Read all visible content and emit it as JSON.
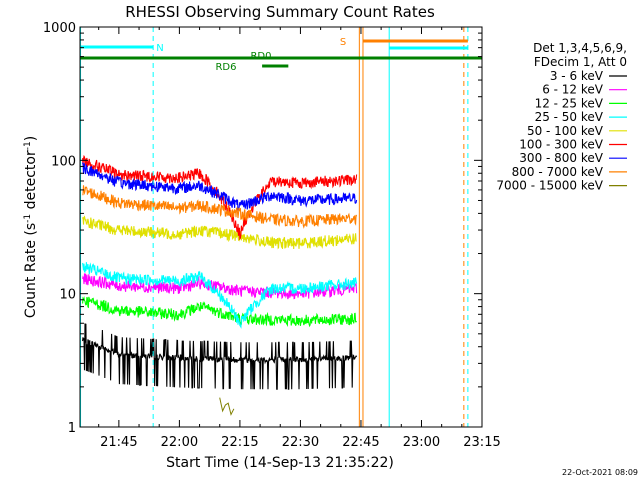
{
  "chart_data": {
    "type": "line",
    "title": "RHESSI Observing Summary Count Rates",
    "xlabel": "Start Time (14-Sep-13 21:35:22)",
    "ylabel_main": "Count Rate (s",
    "ylabel_sup1": "-1",
    "ylabel_mid": " detector",
    "ylabel_sup2": "-1",
    "ylabel_end": ")",
    "ylog": true,
    "ylim": [
      1,
      1000
    ],
    "xlim": [
      "21:35:22",
      "23:15:00"
    ],
    "x_ticks": [
      {
        "label": "21:45",
        "min": 45
      },
      {
        "label": "22:00",
        "min": 60
      },
      {
        "label": "22:15",
        "min": 75
      },
      {
        "label": "22:30",
        "min": 90
      },
      {
        "label": "22:45",
        "min": 105
      },
      {
        "label": "23:00",
        "min": 120
      },
      {
        "label": "23:15",
        "min": 135
      }
    ],
    "y_ticks": [
      {
        "label": "1",
        "value": 1
      },
      {
        "label": "10",
        "value": 10
      },
      {
        "label": "100",
        "value": 100
      },
      {
        "label": "1000",
        "value": 1000
      }
    ],
    "legend": {
      "header_line1": "Det 1,3,4,5,6,9,",
      "header_line2": "FDecim 1, Att 0",
      "placement": "right"
    },
    "series": [
      {
        "name": "3 - 6 keV",
        "color": "#000000",
        "values": [
          {
            "x": "21:36",
            "y": 4.5
          },
          {
            "x": "21:45",
            "y": 3.5
          },
          {
            "x": "22:00",
            "y": 3.3
          },
          {
            "x": "22:15",
            "y": 3.2
          },
          {
            "x": "22:30",
            "y": 3.2
          },
          {
            "x": "22:44",
            "y": 3.3
          }
        ]
      },
      {
        "name": "6 - 12 keV",
        "color": "#ff00ff",
        "values": [
          {
            "x": "21:36",
            "y": 13
          },
          {
            "x": "21:45",
            "y": 11.5
          },
          {
            "x": "22:00",
            "y": 11
          },
          {
            "x": "22:05",
            "y": 12
          },
          {
            "x": "22:15",
            "y": 10.5
          },
          {
            "x": "22:30",
            "y": 10
          },
          {
            "x": "22:44",
            "y": 11
          }
        ]
      },
      {
        "name": "12 - 25 keV",
        "color": "#00ff00",
        "values": [
          {
            "x": "21:36",
            "y": 9
          },
          {
            "x": "21:45",
            "y": 7.5
          },
          {
            "x": "22:00",
            "y": 7
          },
          {
            "x": "22:05",
            "y": 8
          },
          {
            "x": "22:15",
            "y": 6.5
          },
          {
            "x": "22:30",
            "y": 6.3
          },
          {
            "x": "22:44",
            "y": 6.5
          }
        ]
      },
      {
        "name": "25 - 50 keV",
        "color": "#00ffff",
        "values": [
          {
            "x": "21:36",
            "y": 16
          },
          {
            "x": "21:45",
            "y": 13
          },
          {
            "x": "22:00",
            "y": 12.5
          },
          {
            "x": "22:05",
            "y": 13.5
          },
          {
            "x": "22:15",
            "y": 6
          },
          {
            "x": "22:23",
            "y": 11
          },
          {
            "x": "22:30",
            "y": 11
          },
          {
            "x": "22:44",
            "y": 12
          }
        ]
      },
      {
        "name": "50 - 100 keV",
        "color": "#e0e000",
        "values": [
          {
            "x": "21:36",
            "y": 35
          },
          {
            "x": "21:45",
            "y": 30
          },
          {
            "x": "22:00",
            "y": 28
          },
          {
            "x": "22:05",
            "y": 30
          },
          {
            "x": "22:15",
            "y": 27
          },
          {
            "x": "22:23",
            "y": 24
          },
          {
            "x": "22:30",
            "y": 24
          },
          {
            "x": "22:44",
            "y": 26
          }
        ]
      },
      {
        "name": "100 - 300 keV",
        "color": "#ff0000",
        "values": [
          {
            "x": "21:36",
            "y": 100
          },
          {
            "x": "21:45",
            "y": 78
          },
          {
            "x": "22:00",
            "y": 74
          },
          {
            "x": "22:05",
            "y": 80
          },
          {
            "x": "22:15",
            "y": 28
          },
          {
            "x": "22:23",
            "y": 70
          },
          {
            "x": "22:30",
            "y": 68
          },
          {
            "x": "22:44",
            "y": 72
          }
        ]
      },
      {
        "name": "300 - 800 keV",
        "color": "#0000ff",
        "values": [
          {
            "x": "21:36",
            "y": 88
          },
          {
            "x": "21:45",
            "y": 68
          },
          {
            "x": "22:00",
            "y": 62
          },
          {
            "x": "22:05",
            "y": 65
          },
          {
            "x": "22:15",
            "y": 45
          },
          {
            "x": "22:23",
            "y": 55
          },
          {
            "x": "22:30",
            "y": 50
          },
          {
            "x": "22:44",
            "y": 52
          }
        ]
      },
      {
        "name": "800 - 7000 keV",
        "color": "#ff8000",
        "values": [
          {
            "x": "21:36",
            "y": 60
          },
          {
            "x": "21:45",
            "y": 48
          },
          {
            "x": "22:00",
            "y": 44
          },
          {
            "x": "22:05",
            "y": 46
          },
          {
            "x": "22:15",
            "y": 40
          },
          {
            "x": "22:23",
            "y": 36
          },
          {
            "x": "22:30",
            "y": 35
          },
          {
            "x": "22:44",
            "y": 37
          }
        ]
      },
      {
        "name": "7000 - 15000 keV",
        "color": "#808000",
        "values": [
          {
            "x": "22:10",
            "y": 1.5
          },
          {
            "x": "22:12",
            "y": 1.3
          },
          {
            "x": "22:14",
            "y": 1.6
          }
        ]
      }
    ],
    "annotations": [
      {
        "text": "N",
        "color": "#00ffff"
      },
      {
        "text": "S",
        "color": "#ff8000"
      },
      {
        "text": "RD0",
        "color": "#008000"
      },
      {
        "text": "RD6",
        "color": "#008000"
      }
    ],
    "timestamp": "22-Oct-2021 08:09"
  }
}
